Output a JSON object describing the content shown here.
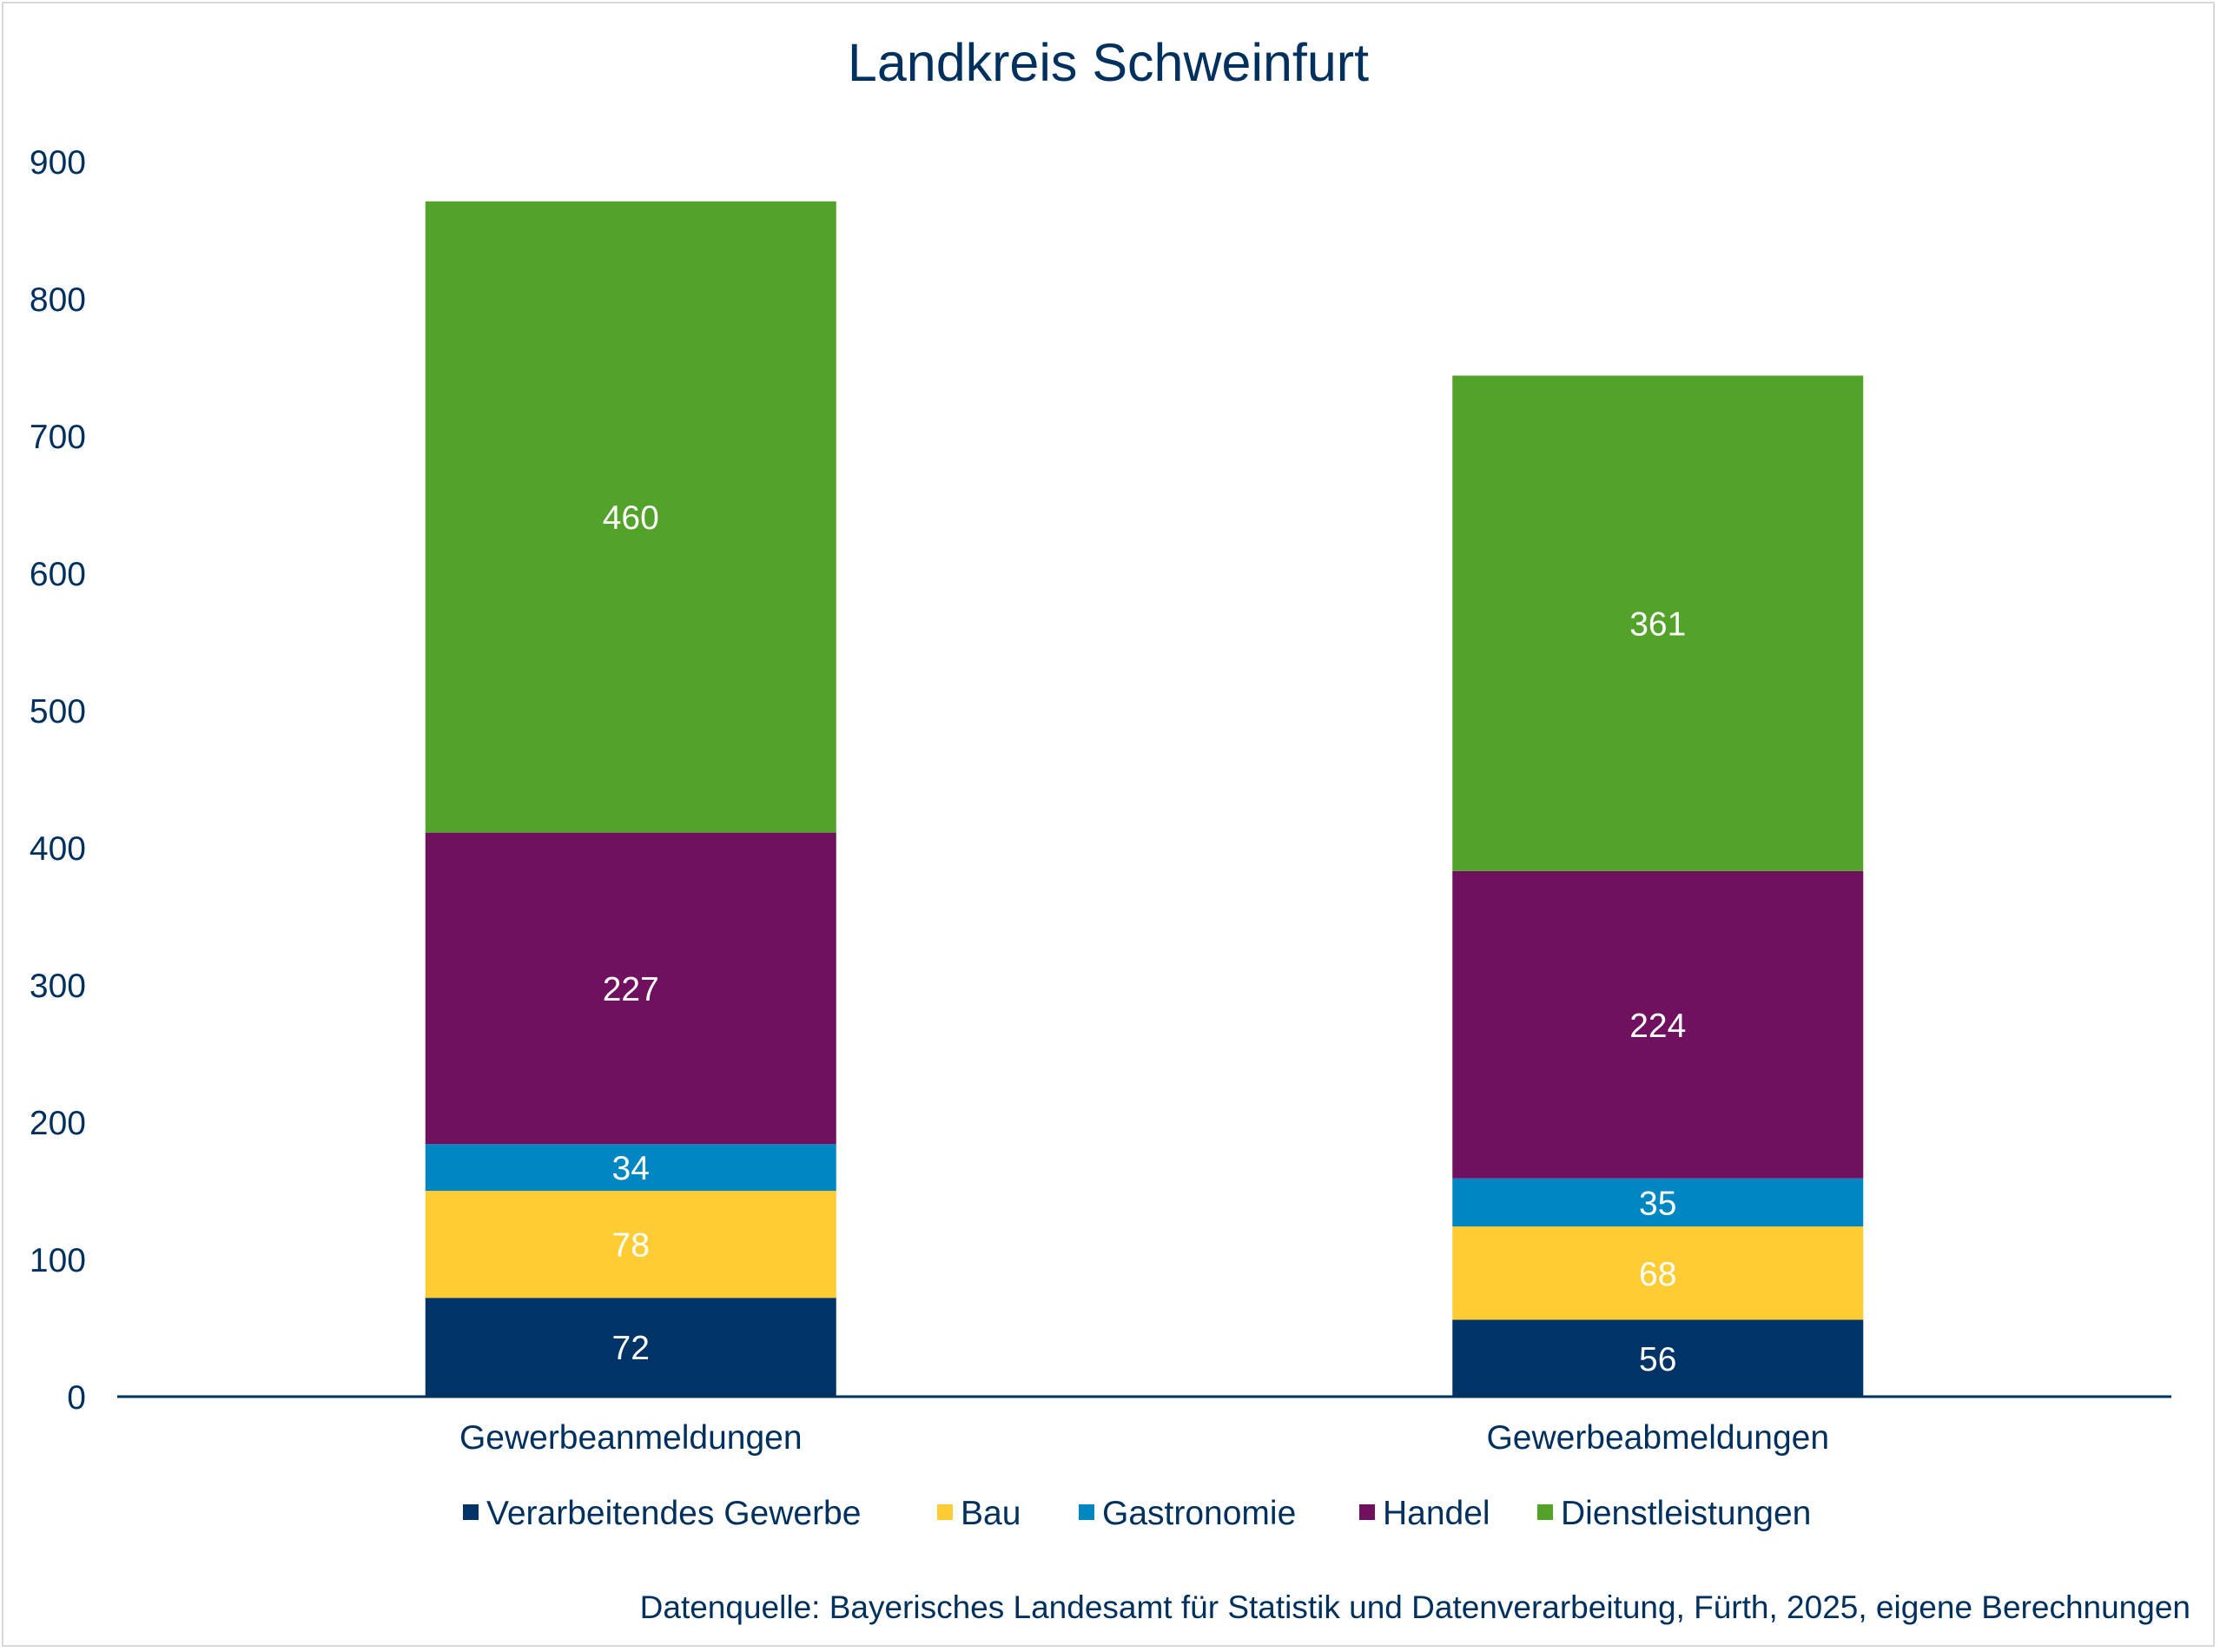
{
  "chart_data": {
    "type": "bar",
    "stacked": true,
    "title": "Landkreis Schweinfurt",
    "categories": [
      "Gewerbeanmeldungen",
      "Gewerbeabmeldungen"
    ],
    "series": [
      {
        "name": "Verarbeitendes Gewerbe",
        "color": "#003366",
        "values": [
          72,
          56
        ]
      },
      {
        "name": "Bau",
        "color": "#ffcc33",
        "values": [
          78,
          68
        ]
      },
      {
        "name": "Gastronomie",
        "color": "#0087c1",
        "values": [
          34,
          35
        ]
      },
      {
        "name": "Handel",
        "color": "#701160",
        "values": [
          227,
          224
        ]
      },
      {
        "name": "Dienstleistungen",
        "color": "#53a22a",
        "values": [
          460,
          361
        ]
      }
    ],
    "ylim": [
      0,
      900
    ],
    "yticks": [
      "0",
      "100",
      "200",
      "300",
      "400",
      "500",
      "600",
      "700",
      "800",
      "900"
    ],
    "grid": false,
    "legend_position": "bottom",
    "source": "Datenquelle: Bayerisches Landesamt für Statistik und Datenverarbeitung, Fürth, 2025, eigene Berechnungen"
  }
}
